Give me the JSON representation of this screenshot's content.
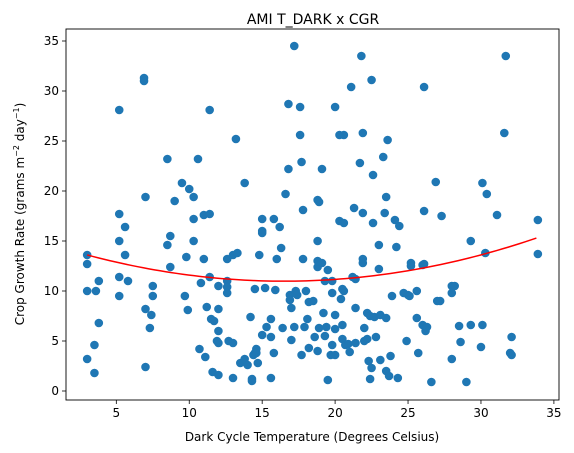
{
  "chart_data": {
    "type": "scatter",
    "title": "AMI T_DARK x CGR",
    "xlabel": "Dark Cycle Temperature (Degrees Celsius)",
    "ylabel_main": "Crop Growth Rate (grams m",
    "ylabel_sup1": "−2",
    "ylabel_mid": " day",
    "ylabel_sup2": "−1",
    "ylabel_end": ")",
    "xlim": [
      1.55,
      35.35
    ],
    "ylim": [
      -0.9,
      36.2
    ],
    "xticks": [
      5,
      10,
      15,
      20,
      25,
      30,
      35
    ],
    "yticks": [
      0,
      5,
      10,
      15,
      20,
      25,
      30,
      35
    ],
    "grid": false,
    "colors": {
      "points": "#1f77b4",
      "fit": "#ff0000"
    },
    "fit_curve": {
      "type": "quadratic",
      "coefficients": [
        0.0144,
        -0.475,
        14.9
      ],
      "x_range": [
        3.0,
        33.8
      ]
    },
    "points": [
      [
        3.0,
        13.6
      ],
      [
        3.0,
        12.7
      ],
      [
        3.0,
        10.0
      ],
      [
        3.0,
        3.2
      ],
      [
        3.5,
        4.6
      ],
      [
        3.5,
        1.8
      ],
      [
        3.6,
        10.0
      ],
      [
        3.8,
        6.8
      ],
      [
        3.8,
        11.0
      ],
      [
        5.2,
        17.7
      ],
      [
        5.2,
        15.0
      ],
      [
        5.2,
        11.4
      ],
      [
        5.2,
        9.5
      ],
      [
        5.2,
        28.1
      ],
      [
        5.6,
        16.4
      ],
      [
        5.6,
        13.6
      ],
      [
        5.8,
        11.0
      ],
      [
        6.9,
        31.3
      ],
      [
        6.9,
        31.0
      ],
      [
        7.0,
        19.4
      ],
      [
        7.0,
        2.4
      ],
      [
        7.0,
        8.2
      ],
      [
        7.3,
        6.3
      ],
      [
        7.4,
        7.6
      ],
      [
        7.5,
        10.5
      ],
      [
        7.5,
        9.5
      ],
      [
        8.5,
        23.2
      ],
      [
        8.5,
        14.6
      ],
      [
        8.7,
        12.4
      ],
      [
        8.7,
        15.5
      ],
      [
        9.0,
        19.0
      ],
      [
        9.5,
        20.8
      ],
      [
        9.7,
        9.5
      ],
      [
        9.8,
        13.4
      ],
      [
        9.9,
        8.1
      ],
      [
        10.0,
        20.2
      ],
      [
        10.3,
        19.4
      ],
      [
        10.3,
        17.2
      ],
      [
        10.3,
        15.0
      ],
      [
        10.6,
        23.2
      ],
      [
        10.7,
        4.2
      ],
      [
        10.8,
        10.8
      ],
      [
        11.0,
        13.2
      ],
      [
        11.0,
        17.6
      ],
      [
        11.1,
        3.4
      ],
      [
        11.2,
        8.4
      ],
      [
        11.4,
        17.7
      ],
      [
        11.4,
        28.1
      ],
      [
        11.4,
        11.4
      ],
      [
        11.5,
        7.2
      ],
      [
        11.6,
        1.9
      ],
      [
        11.7,
        7.0
      ],
      [
        11.9,
        5.0
      ],
      [
        12.0,
        4.8
      ],
      [
        12.0,
        6.0
      ],
      [
        12.0,
        10.5
      ],
      [
        12.0,
        8.2
      ],
      [
        12.0,
        1.6
      ],
      [
        12.6,
        11.0
      ],
      [
        12.6,
        10.4
      ],
      [
        12.6,
        13.2
      ],
      [
        12.6,
        9.8
      ],
      [
        12.7,
        5.0
      ],
      [
        13.0,
        4.8
      ],
      [
        13.0,
        1.3
      ],
      [
        13.0,
        13.6
      ],
      [
        13.2,
        25.2
      ],
      [
        13.3,
        13.8
      ],
      [
        13.5,
        2.8
      ],
      [
        13.8,
        20.8
      ],
      [
        13.8,
        3.2
      ],
      [
        14.0,
        2.6
      ],
      [
        14.2,
        7.4
      ],
      [
        14.3,
        1.2
      ],
      [
        14.3,
        1.0
      ],
      [
        14.4,
        3.6
      ],
      [
        14.5,
        3.8
      ],
      [
        14.5,
        10.2
      ],
      [
        14.6,
        4.2
      ],
      [
        14.6,
        3.8
      ],
      [
        14.7,
        2.8
      ],
      [
        14.8,
        13.6
      ],
      [
        15.0,
        16.0
      ],
      [
        15.0,
        17.2
      ],
      [
        15.0,
        15.8
      ],
      [
        15.0,
        5.6
      ],
      [
        15.2,
        10.3
      ],
      [
        15.3,
        6.4
      ],
      [
        15.6,
        5.4
      ],
      [
        15.6,
        7.2
      ],
      [
        15.6,
        1.3
      ],
      [
        15.9,
        10.1
      ],
      [
        15.8,
        17.2
      ],
      [
        15.8,
        3.8
      ],
      [
        16.0,
        13.2
      ],
      [
        16.2,
        16.4
      ],
      [
        16.3,
        14.3
      ],
      [
        16.4,
        6.3
      ],
      [
        16.6,
        19.7
      ],
      [
        16.8,
        22.2
      ],
      [
        16.8,
        28.7
      ],
      [
        16.9,
        9.6
      ],
      [
        16.9,
        9.1
      ],
      [
        17.0,
        8.3
      ],
      [
        17.0,
        5.1
      ],
      [
        17.2,
        34.5
      ],
      [
        17.2,
        6.4
      ],
      [
        17.3,
        10.0
      ],
      [
        17.4,
        9.6
      ],
      [
        17.6,
        25.6
      ],
      [
        17.6,
        28.4
      ],
      [
        17.7,
        3.6
      ],
      [
        17.7,
        22.9
      ],
      [
        17.8,
        18.1
      ],
      [
        17.8,
        13.2
      ],
      [
        17.9,
        6.4
      ],
      [
        18.0,
        10.0
      ],
      [
        18.1,
        7.2
      ],
      [
        18.2,
        8.9
      ],
      [
        18.2,
        4.3
      ],
      [
        18.5,
        9.0
      ],
      [
        18.6,
        5.4
      ],
      [
        18.8,
        12.4
      ],
      [
        18.8,
        15.0
      ],
      [
        18.8,
        4.0
      ],
      [
        18.8,
        13.0
      ],
      [
        18.8,
        19.1
      ],
      [
        18.9,
        18.9
      ],
      [
        18.9,
        6.3
      ],
      [
        19.1,
        12.8
      ],
      [
        19.1,
        22.2
      ],
      [
        19.2,
        7.8
      ],
      [
        19.3,
        11.0
      ],
      [
        19.3,
        5.5
      ],
      [
        19.4,
        6.4
      ],
      [
        19.5,
        12.1
      ],
      [
        19.5,
        1.1
      ],
      [
        19.7,
        3.6
      ],
      [
        19.8,
        4.6
      ],
      [
        19.8,
        9.8
      ],
      [
        19.8,
        11.0
      ],
      [
        20.0,
        28.4
      ],
      [
        20.0,
        7.6
      ],
      [
        20.0,
        6.2
      ],
      [
        20.0,
        3.6
      ],
      [
        20.3,
        25.6
      ],
      [
        20.3,
        17.0
      ],
      [
        20.4,
        9.2
      ],
      [
        20.5,
        6.6
      ],
      [
        20.5,
        5.2
      ],
      [
        20.5,
        10.2
      ],
      [
        20.6,
        25.6
      ],
      [
        20.6,
        16.8
      ],
      [
        20.6,
        10.0
      ],
      [
        20.7,
        4.6
      ],
      [
        20.9,
        4.7
      ],
      [
        21.0,
        3.9
      ],
      [
        21.1,
        30.4
      ],
      [
        21.2,
        11.4
      ],
      [
        21.3,
        18.3
      ],
      [
        21.4,
        8.3
      ],
      [
        21.4,
        11.2
      ],
      [
        21.4,
        4.8
      ],
      [
        21.7,
        22.8
      ],
      [
        21.8,
        33.5
      ],
      [
        21.9,
        17.8
      ],
      [
        21.9,
        25.8
      ],
      [
        21.9,
        13.2
      ],
      [
        21.9,
        12.8
      ],
      [
        22.0,
        6.3
      ],
      [
        22.0,
        5.0
      ],
      [
        22.2,
        7.8
      ],
      [
        22.2,
        5.2
      ],
      [
        22.3,
        3.0
      ],
      [
        22.4,
        1.2
      ],
      [
        22.4,
        7.5
      ],
      [
        22.5,
        31.1
      ],
      [
        22.5,
        2.3
      ],
      [
        22.6,
        16.8
      ],
      [
        22.6,
        21.6
      ],
      [
        22.7,
        7.4
      ],
      [
        22.8,
        5.4
      ],
      [
        23.0,
        12.2
      ],
      [
        23.0,
        14.6
      ],
      [
        23.1,
        7.6
      ],
      [
        23.1,
        3.1
      ],
      [
        23.3,
        23.4
      ],
      [
        23.4,
        17.8
      ],
      [
        23.5,
        19.4
      ],
      [
        23.5,
        2.0
      ],
      [
        23.5,
        7.3
      ],
      [
        23.6,
        25.1
      ],
      [
        23.7,
        1.5
      ],
      [
        23.8,
        3.5
      ],
      [
        23.9,
        9.5
      ],
      [
        24.1,
        17.1
      ],
      [
        24.2,
        14.4
      ],
      [
        24.3,
        1.3
      ],
      [
        24.4,
        16.5
      ],
      [
        24.7,
        9.8
      ],
      [
        24.9,
        5.0
      ],
      [
        25.0,
        9.6
      ],
      [
        25.1,
        9.5
      ],
      [
        25.2,
        12.8
      ],
      [
        25.2,
        12.5
      ],
      [
        25.6,
        10.0
      ],
      [
        25.6,
        7.3
      ],
      [
        25.7,
        3.8
      ],
      [
        26.0,
        6.6
      ],
      [
        26.0,
        12.6
      ],
      [
        26.1,
        30.4
      ],
      [
        26.1,
        18.0
      ],
      [
        26.1,
        12.7
      ],
      [
        26.2,
        6.0
      ],
      [
        26.3,
        6.4
      ],
      [
        26.6,
        0.9
      ],
      [
        26.9,
        20.9
      ],
      [
        27.0,
        9.0
      ],
      [
        27.2,
        9.0
      ],
      [
        27.3,
        17.5
      ],
      [
        28.0,
        10.5
      ],
      [
        28.0,
        9.8
      ],
      [
        28.0,
        3.2
      ],
      [
        28.2,
        10.5
      ],
      [
        28.5,
        6.5
      ],
      [
        28.6,
        4.9
      ],
      [
        29.0,
        0.9
      ],
      [
        29.3,
        6.6
      ],
      [
        29.3,
        15.0
      ],
      [
        30.0,
        4.4
      ],
      [
        30.1,
        6.6
      ],
      [
        30.1,
        20.8
      ],
      [
        30.4,
        19.7
      ],
      [
        30.3,
        13.8
      ],
      [
        31.1,
        17.6
      ],
      [
        31.6,
        25.8
      ],
      [
        31.7,
        33.5
      ],
      [
        32.1,
        5.4
      ],
      [
        32.0,
        3.8
      ],
      [
        32.1,
        3.6
      ],
      [
        33.9,
        17.1
      ],
      [
        33.9,
        13.7
      ]
    ]
  }
}
